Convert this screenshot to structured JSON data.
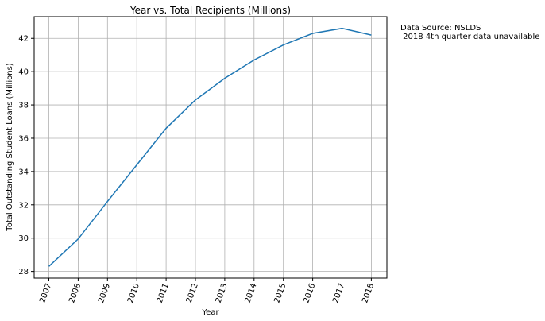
{
  "chart_data": {
    "type": "line",
    "title": "Year vs. Total Recipients (Millions)",
    "xlabel": "Year",
    "ylabel": "Total Outstanding Student Loans (Millions)",
    "categories": [
      "2007",
      "2008",
      "2009",
      "2010",
      "2011",
      "2012",
      "2013",
      "2014",
      "2015",
      "2016",
      "2017",
      "2018"
    ],
    "series": [
      {
        "values": [
          28.3,
          29.95,
          32.2,
          34.4,
          36.6,
          38.3,
          39.6,
          40.7,
          41.6,
          42.3,
          42.6,
          42.2
        ]
      }
    ],
    "yticks": [
      28,
      30,
      32,
      34,
      36,
      38,
      40,
      42
    ],
    "ylim": [
      27.6,
      43.3
    ],
    "grid": true,
    "line_color": "#1f77b4",
    "xtick_rotation": 70
  },
  "notes": {
    "line1": "Data Source: NSLDS",
    "line2": " 2018 4th quarter data unavailable"
  }
}
